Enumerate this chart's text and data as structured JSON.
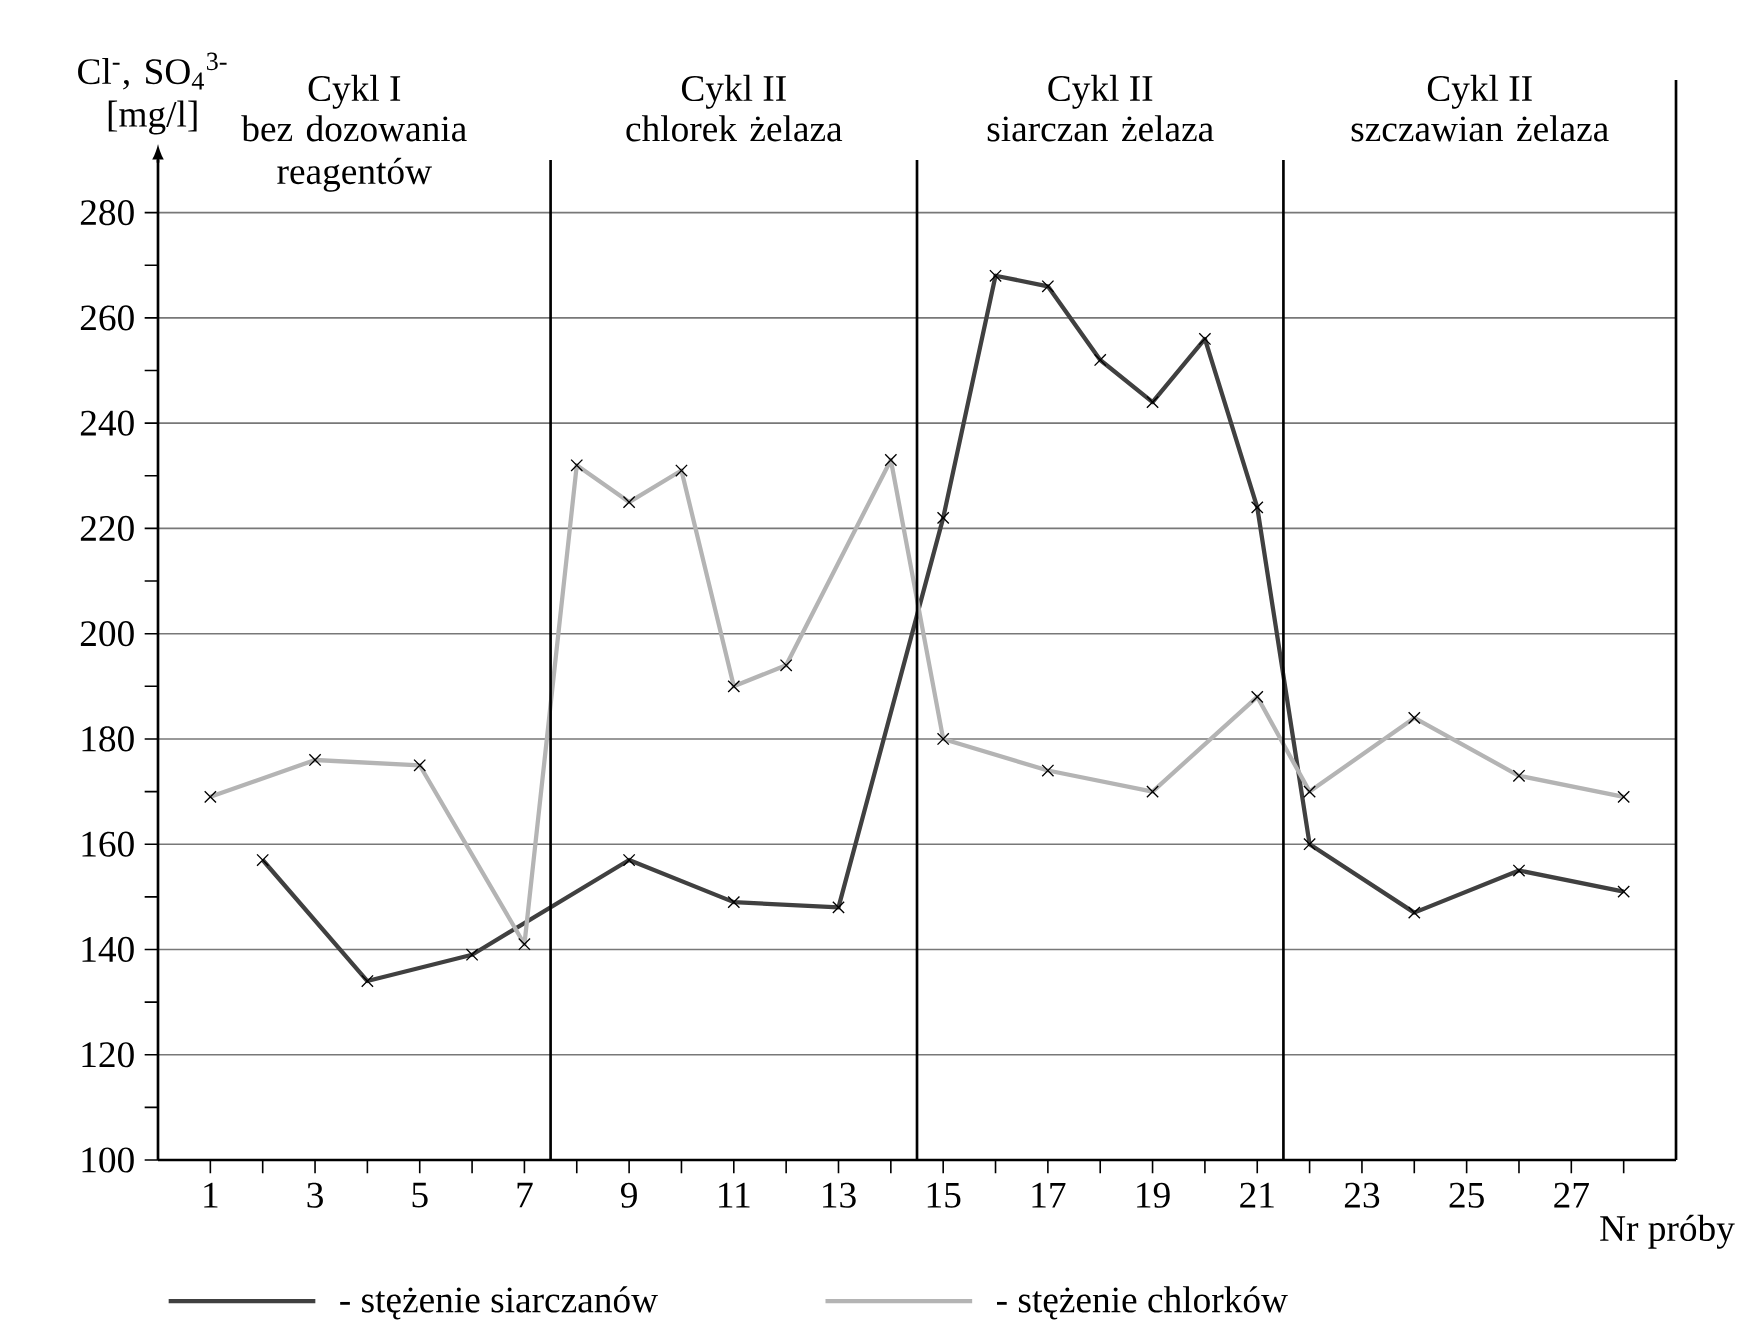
{
  "chart_data": {
    "type": "line",
    "ylabel": "Cl$^{-}$, SO$_{4}$$^{3-}$ [mg/l]",
    "xlabel": "Nr próby",
    "annotations": [
      "Cykl I",
      "bez dozowania reagentów",
      "Cykl II",
      "chlorek żelaza",
      "Cykl II",
      "siarczan żelaza",
      "Cykl II",
      "szczawian żelaza"
    ],
    "series": [
      {
        "name": "- stężenie siarczanów",
        "color": "#404040",
        "x": [
          2,
          4,
          6,
          9,
          11,
          13,
          15,
          16,
          17,
          18,
          19,
          20,
          21,
          22,
          24,
          26,
          28
        ],
        "values": [
          157,
          134,
          139,
          157,
          149,
          148,
          222,
          268,
          266,
          252,
          244,
          256,
          224,
          160,
          147,
          155,
          151
        ]
      },
      {
        "name": "- stężenie chlorków",
        "color": "#b4b4b4",
        "x": [
          1,
          3,
          5,
          7,
          8,
          9,
          10,
          11,
          12,
          14,
          15,
          17,
          19,
          21,
          22,
          24,
          26,
          28
        ],
        "values": [
          169,
          176,
          175,
          141,
          232,
          225,
          231,
          190,
          194,
          233,
          180,
          174,
          170,
          188,
          170,
          184,
          173,
          169
        ]
      }
    ],
    "xlim": [
      0,
      29
    ],
    "ylim": [
      100,
      290
    ],
    "xticks": [
      1,
      {
        "value": 2,
        "label": null
      },
      3,
      {
        "value": 4,
        "label": null
      },
      5,
      {
        "value": 6,
        "label": null
      },
      7,
      {
        "value": 8,
        "label": null
      },
      9,
      {
        "value": 10,
        "label": null
      },
      11,
      {
        "value": 12,
        "label": null
      },
      13,
      {
        "value": 14,
        "label": null
      },
      15,
      {
        "value": 16,
        "label": null
      },
      17,
      {
        "value": 18,
        "label": null
      },
      19,
      {
        "value": 20,
        "label": null
      },
      21,
      {
        "value": 22,
        "label": null
      },
      23,
      {
        "value": 24,
        "label": null
      },
      25,
      {
        "value": 26,
        "label": null
      },
      27,
      {
        "value": 28,
        "label": null
      }
    ],
    "yticks": [
      100,
      {
        "value": 110,
        "label": null
      },
      120,
      {
        "value": 130,
        "label": null
      },
      140,
      {
        "value": 150,
        "label": null
      },
      160,
      {
        "value": 170,
        "label": null
      },
      180,
      {
        "value": 190,
        "label": null
      },
      200,
      {
        "value": 210,
        "label": null
      },
      220,
      {
        "value": 230,
        "label": null
      },
      240,
      {
        "value": 250,
        "label": null
      },
      260,
      {
        "value": 270,
        "label": null
      },
      280
    ],
    "ref_lines": [
      {
        "axis": "x",
        "value": 7.5,
        "color": "#000000"
      },
      {
        "axis": "x",
        "value": 14.5,
        "color": "#000000"
      },
      {
        "axis": "x",
        "value": 21.5,
        "color": "#000000"
      }
    ],
    "grid": "y",
    "legend": "bottom",
    "marker": "cross",
    "line_style": "solid"
  }
}
